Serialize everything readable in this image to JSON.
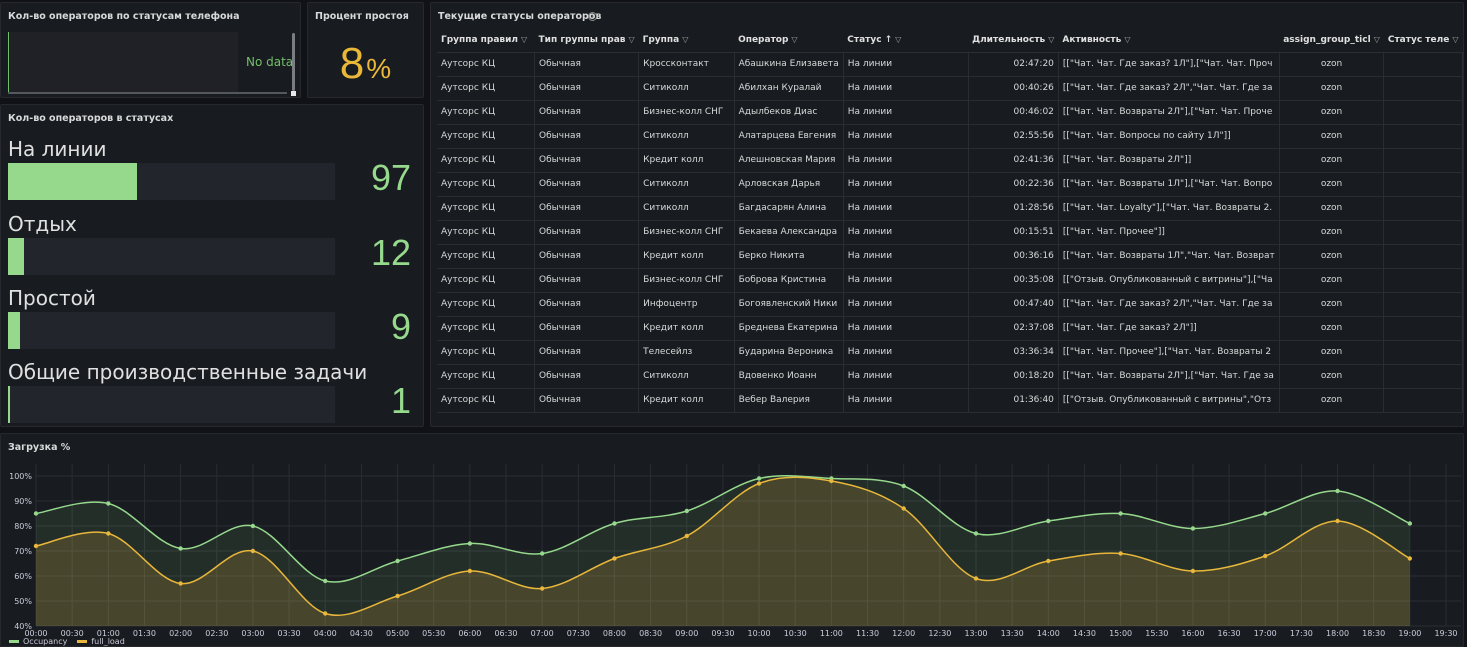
{
  "phone_status_panel": {
    "title": "Кол-во операторов по статусам телефона",
    "no_data": "No data"
  },
  "idle_panel": {
    "title": "Процент простоя",
    "value": "8",
    "unit": "%"
  },
  "status_count_panel": {
    "title": "Кол-во операторов в статусах",
    "bars": [
      {
        "label": "На линии",
        "value": "97",
        "fraction": 0.393
      },
      {
        "label": "Отдых",
        "value": "12",
        "fraction": 0.049
      },
      {
        "label": "Простой",
        "value": "9",
        "fraction": 0.037
      },
      {
        "label": "Общие производственные задачи",
        "value": "1",
        "fraction": 0.004
      }
    ],
    "bar_color": "#96d98d"
  },
  "operators_table": {
    "title": "Текущие статусы операторов",
    "columns": [
      "Группа правил",
      "Тип группы прав",
      "Группа",
      "Оператор",
      "Статус",
      "Длительность",
      "Активность",
      "assign_group_ticl",
      "Статус теле"
    ],
    "rows": [
      [
        "Аутсорс КЦ",
        "Обычная",
        "Кросcконтакт",
        "Абашкина Елизавета",
        "На линии",
        "02:47:20",
        "[[\"Чат. Чат. Где заказ? 1Л\"],[\"Чат. Чат. Проч",
        "ozon"
      ],
      [
        "Аутсорс КЦ",
        "Обычная",
        "Ситиколл",
        "Абилхан Куралай",
        "На линии",
        "00:40:26",
        "[[\"Чат. Чат. Где заказ? 2Л\",\"Чат. Чат. Где за",
        "ozon"
      ],
      [
        "Аутсорс КЦ",
        "Обычная",
        "Бизнес-колл СНГ",
        "Адылбеков Диас",
        "На линии",
        "00:46:02",
        "[[\"Чат. Чат. Возвраты 2Л\"],[\"Чат. Чат. Проче",
        "ozon"
      ],
      [
        "Аутсорс КЦ",
        "Обычная",
        "Ситиколл",
        "Алатарцева Евгения",
        "На линии",
        "02:55:56",
        "[[\"Чат. Чат. Вопросы по сайту 1Л\"]]",
        "ozon"
      ],
      [
        "Аутсорс КЦ",
        "Обычная",
        "Кредит колл",
        "Алешновская Мария",
        "На линии",
        "02:41:36",
        "[[\"Чат. Чат. Возвраты 2Л\"]]",
        "ozon"
      ],
      [
        "Аутсорс КЦ",
        "Обычная",
        "Ситиколл",
        "Арловская Дарья",
        "На линии",
        "00:22:36",
        "[[\"Чат. Чат. Возвраты 1Л\"],[\"Чат. Чат. Вопро",
        "ozon"
      ],
      [
        "Аутсорс КЦ",
        "Обычная",
        "Ситиколл",
        "Багдасарян Алина",
        "На линии",
        "01:28:56",
        "[[\"Чат. Чат. Loyalty\"],[\"Чат. Чат. Возвраты 2.",
        "ozon"
      ],
      [
        "Аутсорс КЦ",
        "Обычная",
        "Бизнес-колл СНГ",
        "Бекаева Александра",
        "На линии",
        "00:15:51",
        "[[\"Чат. Чат. Прочее\"]]",
        "ozon"
      ],
      [
        "Аутсорс КЦ",
        "Обычная",
        "Кредит колл",
        "Берко Никита",
        "На линии",
        "00:36:16",
        "[[\"Чат. Чат. Возвраты 1Л\",\"Чат. Чат. Возврат",
        "ozon"
      ],
      [
        "Аутсорс КЦ",
        "Обычная",
        "Бизнес-колл СНГ",
        "Боброва Кристина",
        "На линии",
        "00:35:08",
        "[[\"Отзыв. Опубликованный с витрины\"],[\"Ча",
        "ozon"
      ],
      [
        "Аутсорс КЦ",
        "Обычная",
        "Инфоцентр",
        "Богоявленский Ники",
        "На линии",
        "00:47:40",
        "[[\"Чат. Чат. Где заказ? 2Л\",\"Чат. Чат. Где за",
        "ozon"
      ],
      [
        "Аутсорс КЦ",
        "Обычная",
        "Кредит колл",
        "Бреднева Екатерина",
        "На линии",
        "02:37:08",
        "[[\"Чат. Чат. Где заказ? 2Л\"]]",
        "ozon"
      ],
      [
        "Аутсорс КЦ",
        "Обычная",
        "Телесейлз",
        "Бударина Вероника",
        "На линии",
        "03:36:34",
        "[[\"Чат. Чат. Прочее\"],[\"Чат. Чат. Возвраты 2",
        "ozon"
      ],
      [
        "Аутсорс КЦ",
        "Обычная",
        "Ситиколл",
        "Вдовенко Иоанн",
        "На линии",
        "00:18:20",
        "[[\"Чат. Чат. Возвраты 2Л\"],[\"Чат. Чат. Где за",
        "ozon"
      ],
      [
        "Аутсорс КЦ",
        "Обычная",
        "Кредит колл",
        "Вебер Валерия",
        "На линии",
        "01:36:40",
        "[[\"Отзыв. Опубликованный с витрины\",\"Отз",
        "ozon"
      ]
    ]
  },
  "load_panel": {
    "title": "Загрузка %"
  },
  "chart_data": {
    "type": "line",
    "title": "Загрузка %",
    "x_ticks": [
      "00:00",
      "00:30",
      "01:00",
      "01:30",
      "02:00",
      "02:30",
      "03:00",
      "03:30",
      "04:00",
      "04:30",
      "05:00",
      "05:30",
      "06:00",
      "06:30",
      "07:00",
      "07:30",
      "08:00",
      "08:30",
      "09:00",
      "09:30",
      "10:00",
      "10:30",
      "11:00",
      "11:30",
      "12:00",
      "12:30",
      "13:00",
      "13:30",
      "14:00",
      "14:30",
      "15:00",
      "15:30",
      "16:00",
      "16:30",
      "17:00",
      "17:30",
      "18:00",
      "18:30",
      "19:00",
      "19:30"
    ],
    "y_ticks": [
      "40%",
      "50%",
      "60%",
      "70%",
      "80%",
      "90%",
      "100%"
    ],
    "ylim": [
      40,
      100
    ],
    "x": [
      "00:00",
      "01:00",
      "02:00",
      "03:00",
      "04:00",
      "05:00",
      "06:00",
      "07:00",
      "08:00",
      "09:00",
      "10:00",
      "11:00",
      "12:00",
      "13:00",
      "14:00",
      "15:00",
      "16:00",
      "17:00",
      "18:00",
      "19:00"
    ],
    "series": [
      {
        "name": "Occupancy",
        "color": "#96d98d",
        "values": [
          85,
          89,
          71,
          80,
          58,
          66,
          73,
          69,
          81,
          86,
          99,
          99,
          96,
          77,
          82,
          85,
          79,
          85,
          94,
          81
        ]
      },
      {
        "name": "full_load",
        "color": "#e8b73b",
        "values": [
          72,
          77,
          57,
          70,
          45,
          52,
          62,
          55,
          67,
          76,
          97,
          98,
          87,
          59,
          66,
          69,
          62,
          68,
          82,
          67
        ]
      }
    ],
    "grid": true,
    "legend_position": "bottom-left"
  }
}
